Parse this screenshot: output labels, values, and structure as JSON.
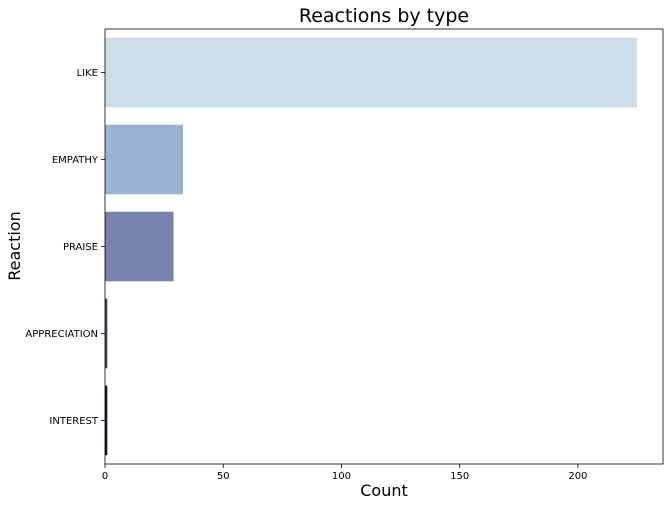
{
  "chart_data": {
    "type": "bar",
    "orientation": "horizontal",
    "title": "Reactions by type",
    "xlabel": "Count",
    "ylabel": "Reaction",
    "categories": [
      "LIKE",
      "EMPATHY",
      "PRAISE",
      "APPRECIATION",
      "INTEREST"
    ],
    "values": [
      225,
      33,
      29,
      1,
      1
    ],
    "colors": [
      "#cadde8",
      "#9ab2cf",
      "#7783ad",
      "#47466e",
      "#1c1a2e"
    ],
    "xlim": [
      0,
      236
    ],
    "xticks": [
      0,
      50,
      100,
      150,
      200
    ],
    "grid": false,
    "legend": "none"
  }
}
